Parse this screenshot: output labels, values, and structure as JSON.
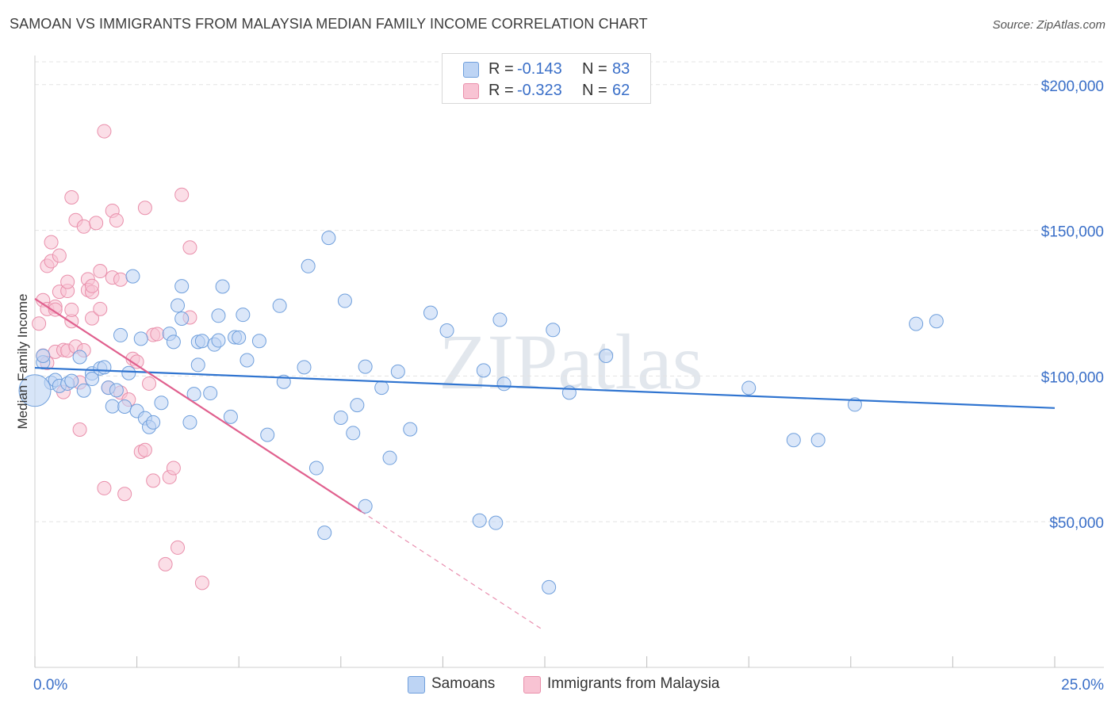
{
  "header": {
    "title": "SAMOAN VS IMMIGRANTS FROM MALAYSIA MEDIAN FAMILY INCOME CORRELATION CHART",
    "source": "Source: ZipAtlas.com"
  },
  "watermark": "ZIPatlas",
  "legend": {
    "r_label": "R =",
    "n_label": "N =",
    "series": [
      {
        "name": "Samoans",
        "r": "-0.143",
        "n": "83"
      },
      {
        "name": "Immigrants from Malaysia",
        "r": "-0.323",
        "n": "62"
      }
    ]
  },
  "chart_data": {
    "type": "scatter",
    "title": "SAMOAN VS IMMIGRANTS FROM MALAYSIA MEDIAN FAMILY INCOME CORRELATION CHART",
    "xlabel": "",
    "ylabel": "Median Family Income",
    "xlim": [
      0,
      25
    ],
    "ylim": [
      0,
      210000
    ],
    "x_tick_labels": [
      "0.0%",
      "25.0%"
    ],
    "y_ticks": [
      50000,
      100000,
      150000,
      200000
    ],
    "y_tick_labels": [
      "$50,000",
      "$100,000",
      "$150,000",
      "$200,000"
    ],
    "colors": {
      "samoans_fill": "#bdd4f4",
      "samoans_stroke": "#6f9fdc",
      "samoans_line": "#2f74d0",
      "malaysia_fill": "#f8c3d3",
      "malaysia_stroke": "#e98fab",
      "malaysia_line": "#e0608e",
      "tick_label": "#3a6fc8",
      "grid": "#e4e4e4",
      "watermark": "#d0d8e4"
    },
    "series": [
      {
        "name": "Samoans",
        "trend": {
          "x0": 0.0,
          "y0": 102800,
          "x1": 25.0,
          "y1": 89000
        },
        "points": [
          [
            0.2,
            104700
          ],
          [
            0.2,
            106900
          ],
          [
            0.4,
            97700
          ],
          [
            0.5,
            98600
          ],
          [
            0.6,
            96600
          ],
          [
            0.8,
            97400
          ],
          [
            0.9,
            98300
          ],
          [
            1.1,
            106500
          ],
          [
            1.2,
            95000
          ],
          [
            1.4,
            100900
          ],
          [
            1.4,
            99000
          ],
          [
            1.6,
            102600
          ],
          [
            1.7,
            103000
          ],
          [
            1.8,
            96000
          ],
          [
            1.9,
            89600
          ],
          [
            2.0,
            95100
          ],
          [
            2.1,
            114000
          ],
          [
            2.2,
            89500
          ],
          [
            2.3,
            101000
          ],
          [
            2.4,
            134200
          ],
          [
            2.5,
            88000
          ],
          [
            2.6,
            112800
          ],
          [
            2.7,
            85500
          ],
          [
            2.8,
            82500
          ],
          [
            2.9,
            84100
          ],
          [
            3.1,
            90800
          ],
          [
            3.3,
            114500
          ],
          [
            3.4,
            111700
          ],
          [
            3.5,
            124200
          ],
          [
            3.6,
            119700
          ],
          [
            3.6,
            130800
          ],
          [
            3.8,
            84100
          ],
          [
            3.9,
            93800
          ],
          [
            4.0,
            103800
          ],
          [
            4.0,
            111700
          ],
          [
            4.1,
            112000
          ],
          [
            4.3,
            94100
          ],
          [
            4.4,
            110800
          ],
          [
            4.5,
            112200
          ],
          [
            4.5,
            120700
          ],
          [
            4.6,
            130700
          ],
          [
            4.8,
            86000
          ],
          [
            4.9,
            113300
          ],
          [
            5.0,
            113200
          ],
          [
            5.1,
            121000
          ],
          [
            5.2,
            105400
          ],
          [
            5.5,
            112000
          ],
          [
            5.7,
            79800
          ],
          [
            6.0,
            124100
          ],
          [
            6.1,
            98000
          ],
          [
            6.6,
            103000
          ],
          [
            6.7,
            137700
          ],
          [
            6.9,
            68400
          ],
          [
            7.1,
            46200
          ],
          [
            7.2,
            147400
          ],
          [
            7.5,
            85700
          ],
          [
            7.6,
            125800
          ],
          [
            7.8,
            80400
          ],
          [
            7.9,
            90000
          ],
          [
            8.1,
            103200
          ],
          [
            8.1,
            55300
          ],
          [
            8.5,
            96000
          ],
          [
            8.7,
            71900
          ],
          [
            8.9,
            101500
          ],
          [
            9.2,
            81700
          ],
          [
            9.7,
            121700
          ],
          [
            10.1,
            115600
          ],
          [
            10.9,
            50400
          ],
          [
            11.0,
            101900
          ],
          [
            11.3,
            49600
          ],
          [
            11.4,
            119300
          ],
          [
            11.5,
            97300
          ],
          [
            12.6,
            27500
          ],
          [
            12.7,
            115800
          ],
          [
            13.1,
            94300
          ],
          [
            14.0,
            106900
          ],
          [
            17.5,
            95900
          ],
          [
            18.6,
            78000
          ],
          [
            19.2,
            78000
          ],
          [
            20.1,
            90200
          ],
          [
            21.6,
            117900
          ],
          [
            22.1,
            118800
          ],
          [
            0.0,
            95000
          ]
        ]
      },
      {
        "name": "Immigrants from Malaysia",
        "trend": {
          "x0": 0.0,
          "y0": 126500,
          "x1": 8.0,
          "y1": 53500,
          "dash_to_x": 12.4
        },
        "points": [
          [
            0.1,
            118000
          ],
          [
            0.2,
            126000
          ],
          [
            0.2,
            107000
          ],
          [
            0.3,
            123000
          ],
          [
            0.3,
            104500
          ],
          [
            0.3,
            137800
          ],
          [
            0.4,
            139400
          ],
          [
            0.4,
            145900
          ],
          [
            0.5,
            123800
          ],
          [
            0.5,
            122800
          ],
          [
            0.5,
            108300
          ],
          [
            0.6,
            141300
          ],
          [
            0.6,
            128900
          ],
          [
            0.7,
            108900
          ],
          [
            0.7,
            94500
          ],
          [
            0.8,
            129200
          ],
          [
            0.8,
            132300
          ],
          [
            0.8,
            108700
          ],
          [
            0.9,
            118800
          ],
          [
            0.9,
            122700
          ],
          [
            0.9,
            161300
          ],
          [
            1.0,
            110100
          ],
          [
            1.0,
            153500
          ],
          [
            1.1,
            81600
          ],
          [
            1.1,
            97800
          ],
          [
            1.2,
            151300
          ],
          [
            1.2,
            108800
          ],
          [
            1.3,
            133200
          ],
          [
            1.3,
            129500
          ],
          [
            1.4,
            128800
          ],
          [
            1.4,
            130900
          ],
          [
            1.4,
            119800
          ],
          [
            1.5,
            152500
          ],
          [
            1.6,
            123000
          ],
          [
            1.6,
            136000
          ],
          [
            1.7,
            184000
          ],
          [
            1.7,
            61500
          ],
          [
            1.8,
            96000
          ],
          [
            1.9,
            156700
          ],
          [
            1.9,
            133800
          ],
          [
            2.0,
            153400
          ],
          [
            2.1,
            133100
          ],
          [
            2.1,
            94300
          ],
          [
            2.2,
            59500
          ],
          [
            2.3,
            91900
          ],
          [
            2.4,
            105900
          ],
          [
            2.5,
            104900
          ],
          [
            2.6,
            74000
          ],
          [
            2.7,
            157700
          ],
          [
            2.7,
            74600
          ],
          [
            2.8,
            97400
          ],
          [
            2.9,
            64100
          ],
          [
            2.9,
            114100
          ],
          [
            3.0,
            114400
          ],
          [
            3.2,
            35400
          ],
          [
            3.3,
            65300
          ],
          [
            3.4,
            68400
          ],
          [
            3.5,
            41100
          ],
          [
            3.6,
            162200
          ],
          [
            3.8,
            144100
          ],
          [
            3.8,
            120100
          ],
          [
            4.1,
            29000
          ]
        ]
      }
    ]
  }
}
